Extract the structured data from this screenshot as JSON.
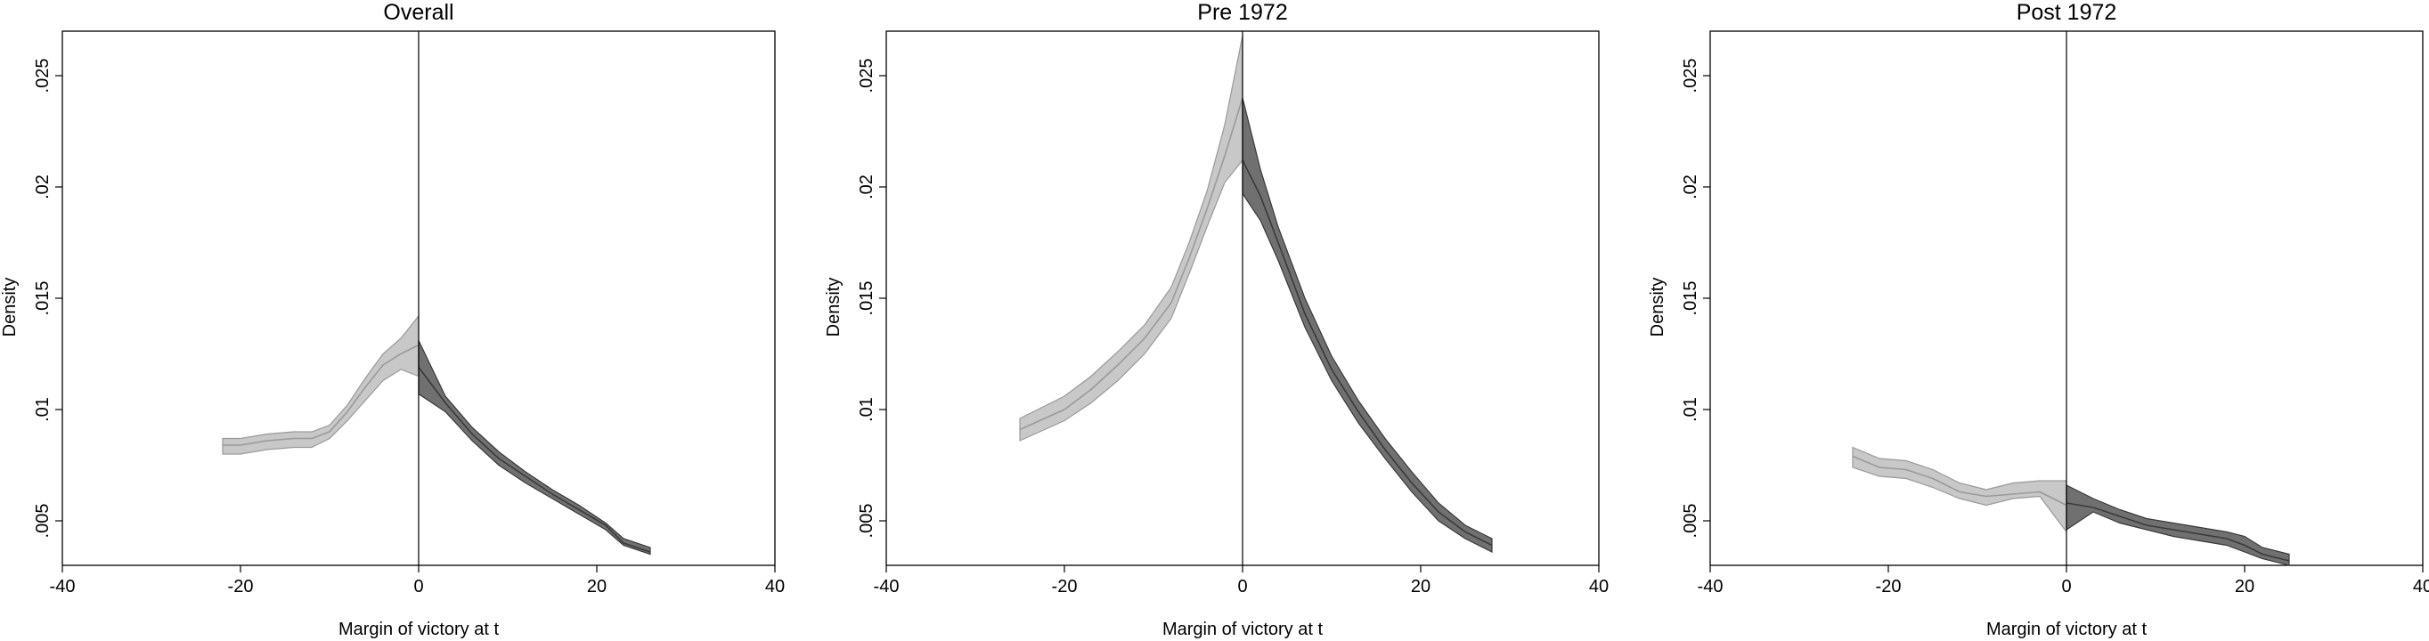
{
  "chart_data": [
    {
      "type": "area",
      "title": "Overall",
      "xlabel": "Margin of victory at t",
      "ylabel": "Density",
      "xlim": [
        -40,
        40
      ],
      "ylim": [
        0.003,
        0.027
      ],
      "xticks": [
        -40,
        -20,
        0,
        20,
        40
      ],
      "xtick_labels": [
        "-40",
        "-20",
        "0",
        "20",
        "40"
      ],
      "yticks": [
        0.005,
        0.01,
        0.015,
        0.02,
        0.025
      ],
      "ytick_labels": [
        ".005",
        ".01",
        ".015",
        ".02",
        ".025"
      ],
      "cutoff": 0,
      "grid": false,
      "series": [
        {
          "side": "left",
          "color": "#c8c8c8",
          "edge": "#9a9a9a",
          "x": [
            -22,
            -20,
            -17,
            -14,
            -12,
            -10,
            -8,
            -6,
            -4,
            -2,
            0
          ],
          "upper": [
            0.0087,
            0.0087,
            0.0089,
            0.009,
            0.009,
            0.0093,
            0.0102,
            0.0114,
            0.0125,
            0.0132,
            0.0142
          ],
          "lower": [
            0.008,
            0.008,
            0.0082,
            0.0083,
            0.0083,
            0.0087,
            0.0095,
            0.0104,
            0.0113,
            0.0118,
            0.0115
          ],
          "center": [
            0.0084,
            0.0084,
            0.0086,
            0.0087,
            0.0087,
            0.009,
            0.0099,
            0.011,
            0.012,
            0.0125,
            0.0129
          ]
        },
        {
          "side": "right",
          "color": "#707070",
          "edge": "#3a3a3a",
          "x": [
            0,
            3,
            6,
            9,
            12,
            15,
            18,
            21,
            23,
            26
          ],
          "upper": [
            0.0131,
            0.0106,
            0.0092,
            0.0081,
            0.0072,
            0.0064,
            0.0057,
            0.0049,
            0.0042,
            0.0038
          ],
          "lower": [
            0.0107,
            0.0099,
            0.0086,
            0.0075,
            0.0067,
            0.006,
            0.0053,
            0.0046,
            0.0039,
            0.0035
          ],
          "center": [
            0.0119,
            0.0103,
            0.0089,
            0.0078,
            0.007,
            0.0062,
            0.0055,
            0.0048,
            0.004,
            0.0036
          ]
        }
      ]
    },
    {
      "type": "area",
      "title": "Pre 1972",
      "xlabel": "Margin of victory at t",
      "ylabel": "Density",
      "xlim": [
        -40,
        40
      ],
      "ylim": [
        0.003,
        0.027
      ],
      "xticks": [
        -40,
        -20,
        0,
        20,
        40
      ],
      "xtick_labels": [
        "-40",
        "-20",
        "0",
        "20",
        "40"
      ],
      "yticks": [
        0.005,
        0.01,
        0.015,
        0.02,
        0.025
      ],
      "ytick_labels": [
        ".005",
        ".01",
        ".015",
        ".02",
        ".025"
      ],
      "cutoff": 0,
      "grid": false,
      "series": [
        {
          "side": "left",
          "color": "#c8c8c8",
          "edge": "#9a9a9a",
          "x": [
            -25,
            -20,
            -17,
            -14,
            -11,
            -8,
            -6,
            -4,
            -2,
            0
          ],
          "upper": [
            0.0096,
            0.0106,
            0.0115,
            0.0126,
            0.0138,
            0.0155,
            0.0175,
            0.0198,
            0.0228,
            0.0268
          ],
          "lower": [
            0.0086,
            0.0095,
            0.0103,
            0.0113,
            0.0125,
            0.0141,
            0.0161,
            0.0182,
            0.0202,
            0.0212
          ],
          "center": [
            0.0091,
            0.01,
            0.0109,
            0.012,
            0.0132,
            0.0148,
            0.0168,
            0.019,
            0.0214,
            0.024
          ]
        },
        {
          "side": "right",
          "color": "#707070",
          "edge": "#3a3a3a",
          "x": [
            0,
            2,
            4,
            7,
            10,
            13,
            16,
            19,
            22,
            25,
            28
          ],
          "upper": [
            0.024,
            0.0208,
            0.0182,
            0.015,
            0.0124,
            0.0104,
            0.0087,
            0.0072,
            0.0058,
            0.0048,
            0.0042
          ],
          "lower": [
            0.0197,
            0.0185,
            0.0167,
            0.0137,
            0.0113,
            0.0094,
            0.0078,
            0.0063,
            0.005,
            0.0042,
            0.0036
          ],
          "center": [
            0.0212,
            0.0196,
            0.0175,
            0.0143,
            0.0118,
            0.0099,
            0.0082,
            0.0067,
            0.0054,
            0.0045,
            0.0039
          ]
        }
      ]
    },
    {
      "type": "area",
      "title": "Post 1972",
      "xlabel": "Margin of victory at t",
      "ylabel": "Density",
      "xlim": [
        -40,
        40
      ],
      "ylim": [
        0.003,
        0.027
      ],
      "xticks": [
        -40,
        -20,
        0,
        20,
        40
      ],
      "xtick_labels": [
        "-40",
        "-20",
        "0",
        "20",
        "40"
      ],
      "yticks": [
        0.005,
        0.01,
        0.015,
        0.02,
        0.025
      ],
      "ytick_labels": [
        ".005",
        ".01",
        ".015",
        ".02",
        ".025"
      ],
      "cutoff": 0,
      "grid": false,
      "series": [
        {
          "side": "left",
          "color": "#c8c8c8",
          "edge": "#9a9a9a",
          "x": [
            -24,
            -21,
            -18,
            -15,
            -12,
            -9,
            -6,
            -3,
            0
          ],
          "upper": [
            0.0083,
            0.0078,
            0.0077,
            0.0073,
            0.0067,
            0.0064,
            0.0067,
            0.0068,
            0.0068
          ],
          "lower": [
            0.0074,
            0.007,
            0.0069,
            0.0065,
            0.006,
            0.0057,
            0.006,
            0.0061,
            0.0045
          ],
          "center": [
            0.0079,
            0.0074,
            0.0073,
            0.0069,
            0.0063,
            0.0061,
            0.0062,
            0.0063,
            0.0057
          ]
        },
        {
          "side": "right",
          "color": "#707070",
          "edge": "#3a3a3a",
          "x": [
            0,
            3,
            6,
            9,
            12,
            15,
            18,
            20,
            22,
            25
          ],
          "upper": [
            0.0066,
            0.006,
            0.0055,
            0.0051,
            0.0049,
            0.0047,
            0.0045,
            0.0043,
            0.0038,
            0.0035
          ],
          "lower": [
            0.0046,
            0.0054,
            0.0049,
            0.0046,
            0.0043,
            0.0041,
            0.0039,
            0.0036,
            0.0033,
            0.003
          ],
          "center": [
            0.0058,
            0.0056,
            0.0052,
            0.0048,
            0.0046,
            0.0044,
            0.0042,
            0.0039,
            0.0035,
            0.0032
          ]
        }
      ]
    }
  ]
}
